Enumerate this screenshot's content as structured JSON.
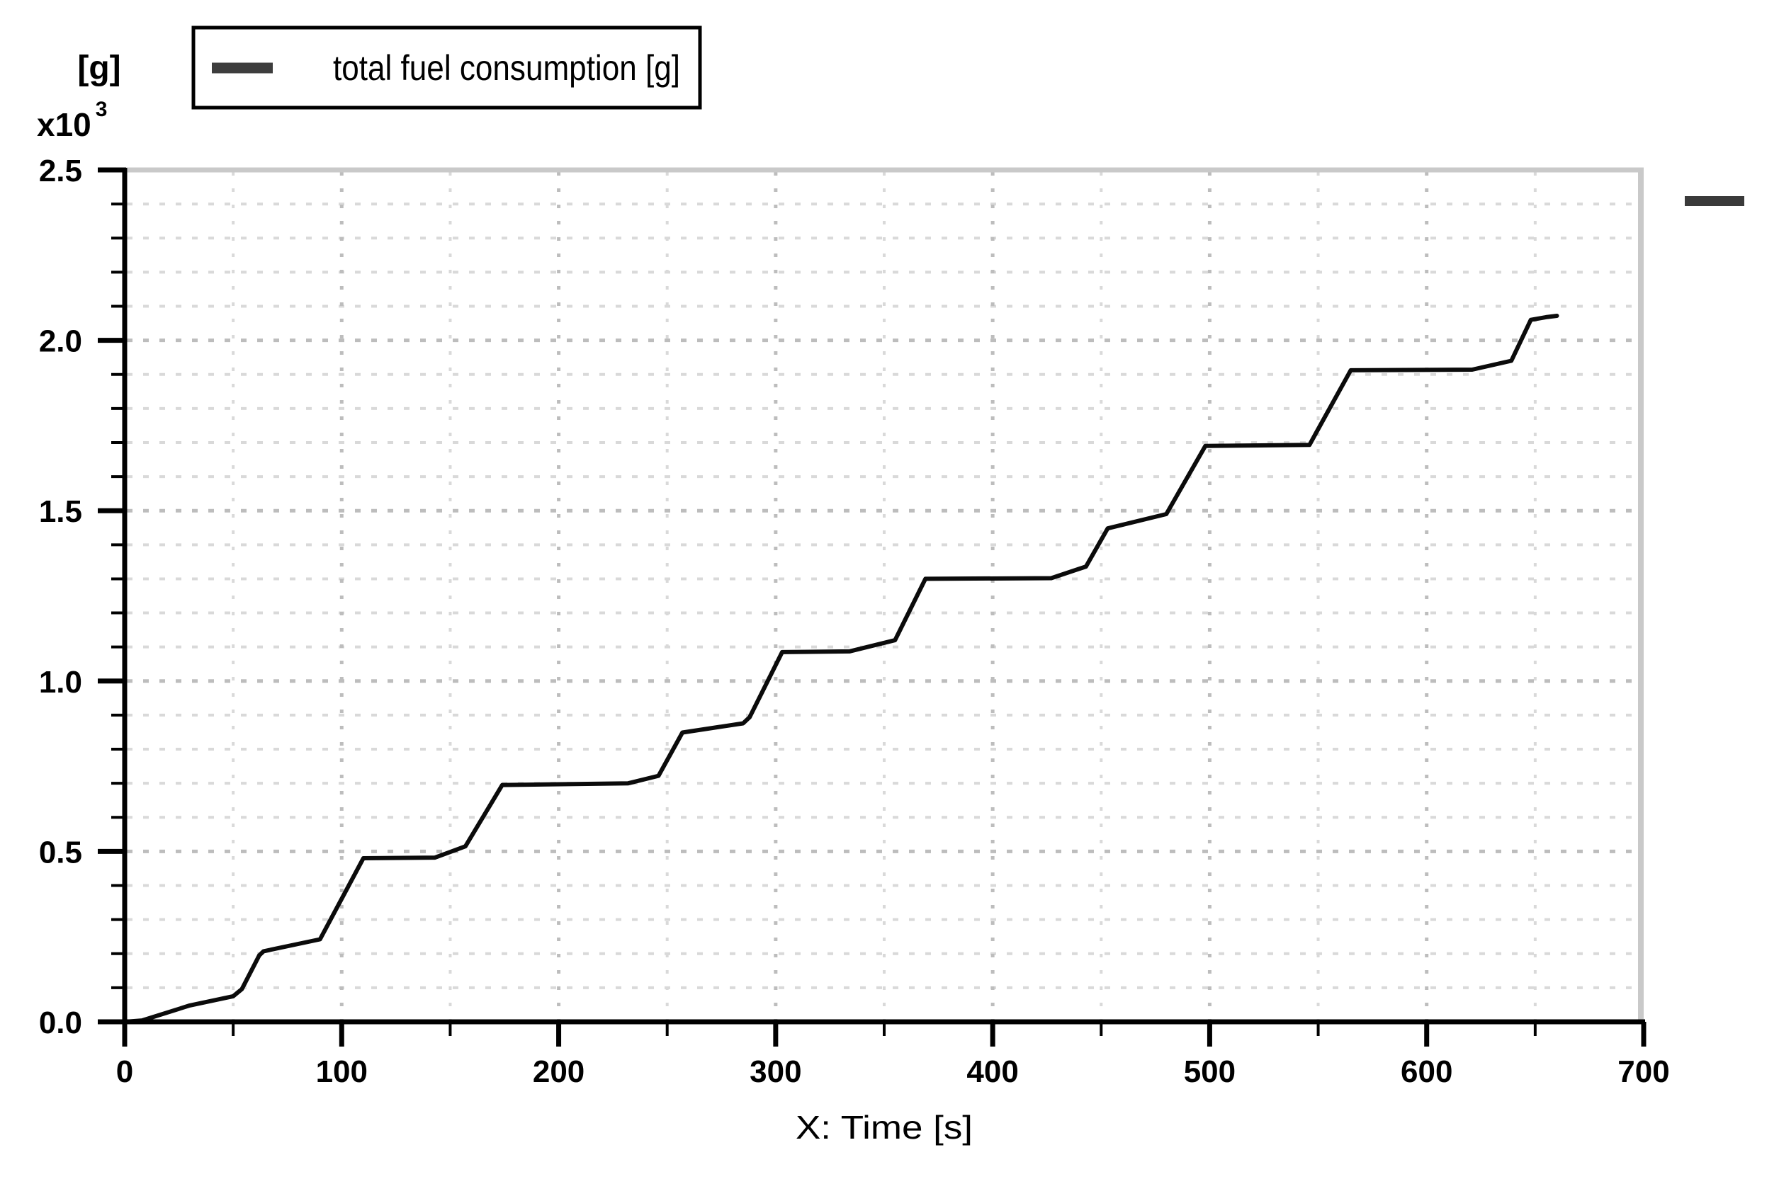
{
  "figure": {
    "y_unit_label": "[g]",
    "y_scale_label": "x10",
    "y_scale_exponent": "3",
    "x_axis_title": "X: Time [s]",
    "legend": {
      "label": "total fuel consumption [g]",
      "sample_color": "#3d3d3d"
    },
    "colors": {
      "axis": "#000000",
      "grid_major": "#bdbdbd",
      "grid_minor": "#d9d9d9",
      "border": "#c9c9c9",
      "curve": "#0b0b0b",
      "end_marker": "#3a3a3a",
      "background": "#ffffff"
    }
  },
  "chart_data": {
    "type": "line",
    "title": "",
    "xlabel": "X: Time [s]",
    "ylabel": "[g] x10^3",
    "grid": true,
    "legend_position": "top-left",
    "x": {
      "min": 0,
      "max": 700,
      "major_ticks": [
        0,
        100,
        200,
        300,
        400,
        500,
        600,
        700
      ],
      "tick_labels": [
        "0",
        "100",
        "200",
        "300",
        "400",
        "500",
        "600",
        "700"
      ],
      "minor_step": 50
    },
    "y": {
      "min": 0,
      "max": 2.5,
      "major_ticks": [
        0,
        0.5,
        1.0,
        1.5,
        2.0,
        2.5
      ],
      "tick_labels": [
        "0.0",
        "0.5",
        "1.0",
        "1.5",
        "2.0",
        "2.5"
      ],
      "minor_step": 0.1,
      "unit": "g",
      "multiplier": "x10^3"
    },
    "series": [
      {
        "name": "total fuel consumption [g]",
        "color": "#0b0b0b",
        "points": [
          [
            0,
            0
          ],
          [
            8,
            0.004
          ],
          [
            30,
            0.048
          ],
          [
            50,
            0.075
          ],
          [
            54,
            0.096
          ],
          [
            62,
            0.195
          ],
          [
            64,
            0.207
          ],
          [
            90,
            0.242
          ],
          [
            110,
            0.48
          ],
          [
            143,
            0.482
          ],
          [
            157,
            0.515
          ],
          [
            174,
            0.695
          ],
          [
            232,
            0.7
          ],
          [
            246,
            0.722
          ],
          [
            257,
            0.849
          ],
          [
            285,
            0.876
          ],
          [
            288,
            0.894
          ],
          [
            303,
            1.085
          ],
          [
            334,
            1.087
          ],
          [
            355,
            1.12
          ],
          [
            369,
            1.3
          ],
          [
            427,
            1.302
          ],
          [
            443,
            1.336
          ],
          [
            453,
            1.448
          ],
          [
            480,
            1.49
          ],
          [
            498,
            1.69
          ],
          [
            546,
            1.693
          ],
          [
            549,
            1.728
          ],
          [
            565,
            1.912
          ],
          [
            621,
            1.914
          ],
          [
            639,
            1.94
          ],
          [
            648,
            2.06
          ],
          [
            655,
            2.068
          ],
          [
            660,
            2.072
          ]
        ]
      }
    ]
  }
}
